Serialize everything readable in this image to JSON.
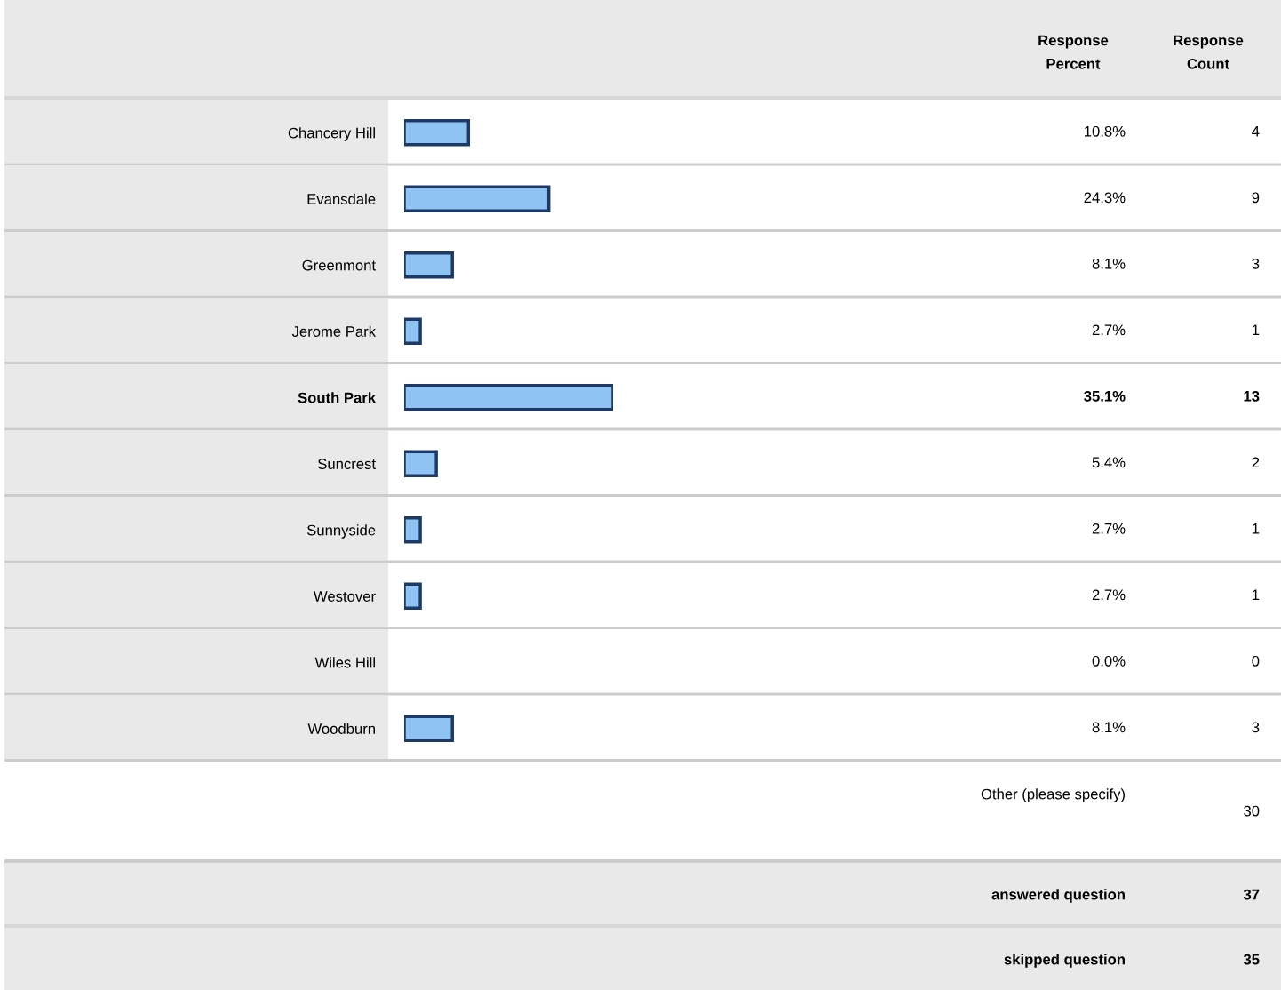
{
  "chart_data": {
    "type": "bar",
    "orientation": "horizontal",
    "categories": [
      "Chancery Hill",
      "Evansdale",
      "Greenmont",
      "Jerome Park",
      "South Park",
      "Suncrest",
      "Sunnyside",
      "Westover",
      "Wiles Hill",
      "Woodburn"
    ],
    "values": [
      10.8,
      24.3,
      8.1,
      2.7,
      35.1,
      5.4,
      2.7,
      2.7,
      0.0,
      8.1
    ],
    "value_labels": [
      "10.8%",
      "24.3%",
      "8.1%",
      "2.7%",
      "35.1%",
      "5.4%",
      "2.7%",
      "2.7%",
      "0.0%",
      "8.1%"
    ],
    "color": "#8ec3f3",
    "annotations": [
      "Response Percent",
      "Response Count",
      "Other (please specify)",
      "30",
      "answered question",
      "37",
      "skipped question",
      "35",
      "4",
      "9",
      "3",
      "1",
      "13",
      "2",
      "1",
      "1",
      "0",
      "3"
    ],
    "grid": false,
    "legend": false
  }
}
